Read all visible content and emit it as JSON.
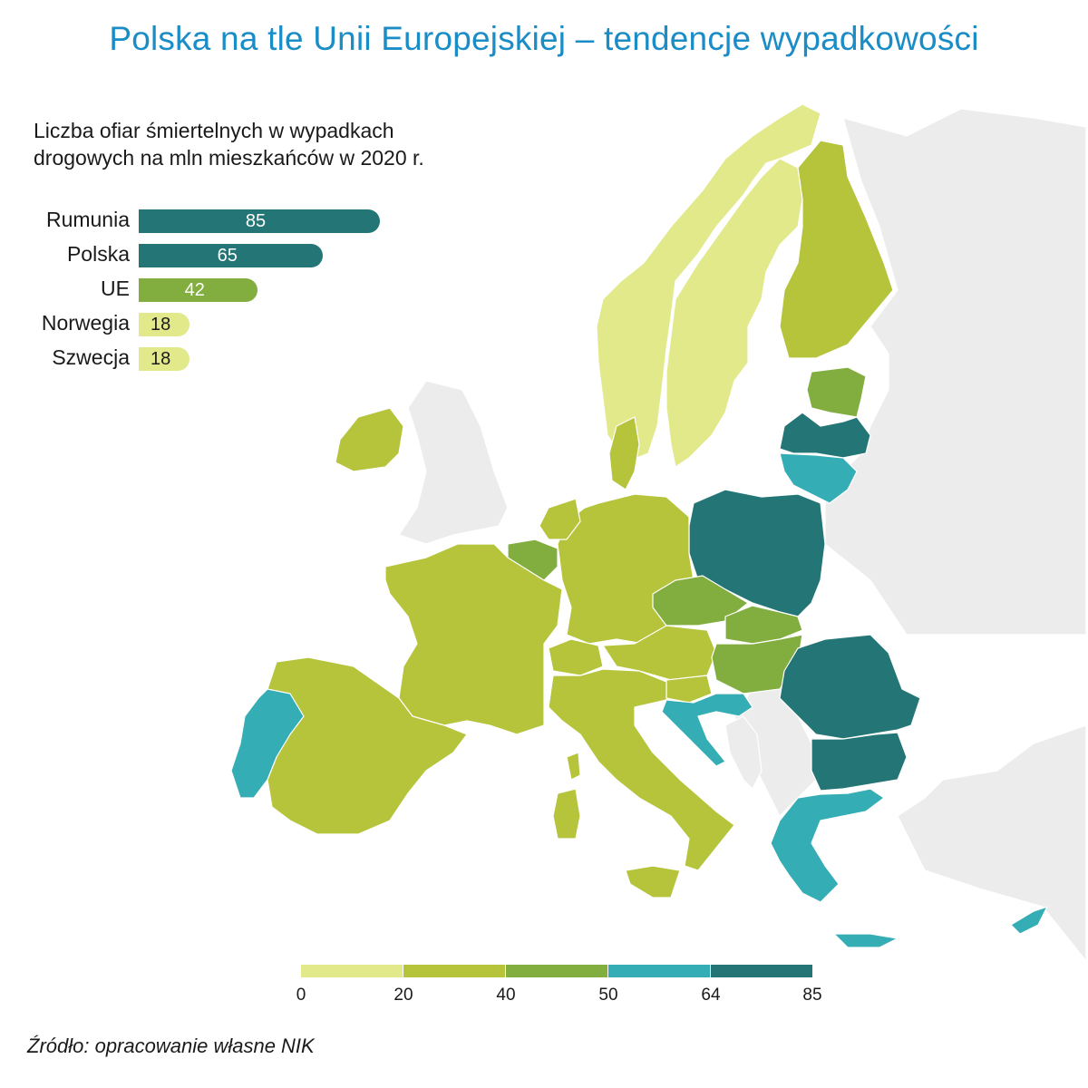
{
  "title": "Polska na tle Unii Europejskiej – tendencje wypadkowości",
  "subtitle_line1": "Liczba ofiar śmiertelnych w wypadkach",
  "subtitle_line2": "drogowych na mln mieszkańców w 2020 r.",
  "source": "Źródło: opracowanie własne NIK",
  "colors": {
    "class_0_20": "#e2e98a",
    "class_20_40": "#b5c43b",
    "class_40_50": "#82ad3f",
    "class_50_64": "#35adb4",
    "class_64_85": "#247575",
    "non_eu": "#ececec",
    "title": "#1a8cc6"
  },
  "legend": {
    "ticks": [
      "0",
      "20",
      "40",
      "50",
      "64",
      "85"
    ],
    "classes": [
      "0-20",
      "20-40",
      "40-50",
      "50-64",
      "64-85"
    ]
  },
  "chart_data": {
    "type": "bar",
    "categories": [
      "Rumunia",
      "Polska",
      "UE",
      "Norwegia",
      "Szwecja"
    ],
    "values": [
      85,
      65,
      42,
      18,
      18
    ],
    "value_labels": [
      "85",
      "65",
      "42",
      "18",
      "18"
    ],
    "bar_colors": [
      "#247575",
      "#247575",
      "#82ad3f",
      "#e2e98a",
      "#e2e98a"
    ],
    "label_colors": [
      "#ffffff",
      "#ffffff",
      "#ffffff",
      "#1a1a1a",
      "#1a1a1a"
    ]
  },
  "map_regions": [
    {
      "name": "Norwegia",
      "class": "0-20"
    },
    {
      "name": "Szwecja",
      "class": "0-20"
    },
    {
      "name": "Finlandia",
      "class": "20-40"
    },
    {
      "name": "Estonia",
      "class": "40-50"
    },
    {
      "name": "Łotwa",
      "class": "64-85"
    },
    {
      "name": "Litwa",
      "class": "50-64"
    },
    {
      "name": "Polska",
      "class": "64-85"
    },
    {
      "name": "Niemcy",
      "class": "20-40"
    },
    {
      "name": "Dania",
      "class": "20-40"
    },
    {
      "name": "Holandia",
      "class": "20-40"
    },
    {
      "name": "Belgia",
      "class": "40-50"
    },
    {
      "name": "Luksemburg",
      "class": "40-50"
    },
    {
      "name": "Francja",
      "class": "20-40"
    },
    {
      "name": "Irlandia",
      "class": "20-40"
    },
    {
      "name": "Hiszpania",
      "class": "20-40"
    },
    {
      "name": "Portugalia",
      "class": "50-64"
    },
    {
      "name": "Włochy",
      "class": "20-40"
    },
    {
      "name": "Szwajcaria",
      "class": "20-40"
    },
    {
      "name": "Austria",
      "class": "20-40"
    },
    {
      "name": "Czechy",
      "class": "40-50"
    },
    {
      "name": "Słowacja",
      "class": "40-50"
    },
    {
      "name": "Węgry",
      "class": "40-50"
    },
    {
      "name": "Słowenia",
      "class": "20-40"
    },
    {
      "name": "Chorwacja",
      "class": "50-64"
    },
    {
      "name": "Rumunia",
      "class": "64-85"
    },
    {
      "name": "Bułgaria",
      "class": "64-85"
    },
    {
      "name": "Grecja",
      "class": "50-64"
    },
    {
      "name": "Cypr",
      "class": "50-64"
    }
  ]
}
